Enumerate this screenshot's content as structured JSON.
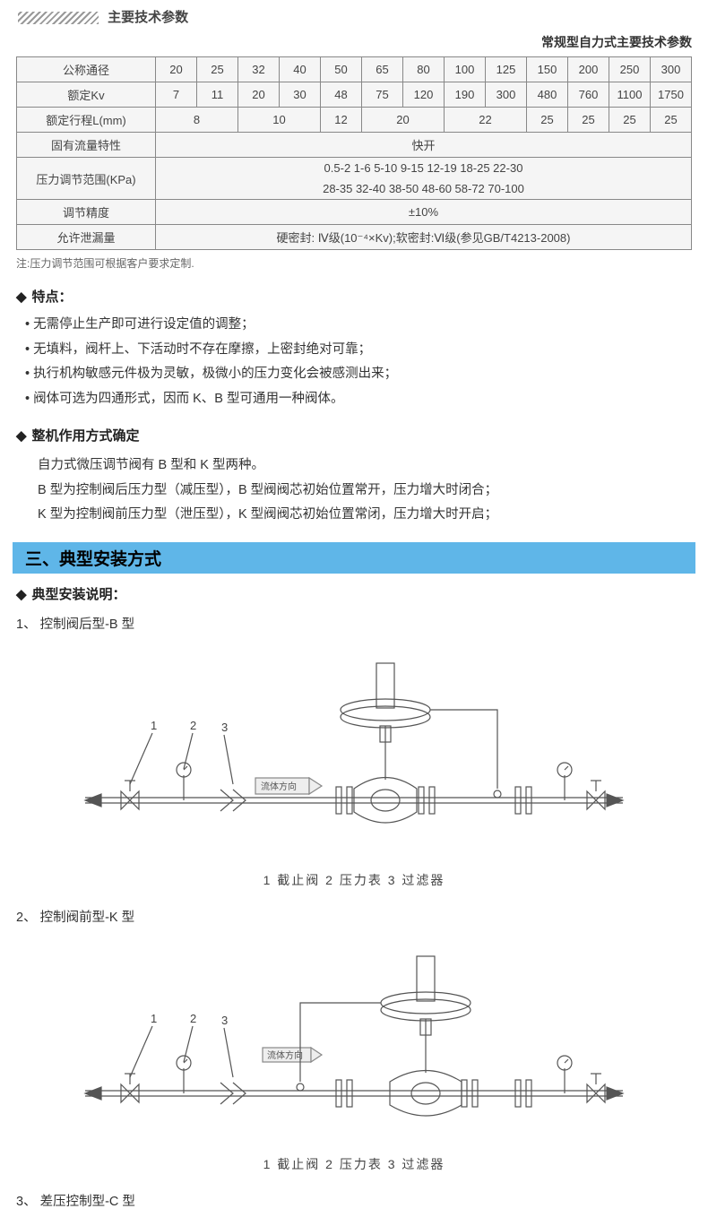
{
  "header": {
    "main_title": "主要技术参数",
    "subtitle": "常规型自力式主要技术参数"
  },
  "params_table": {
    "columns": [
      "20",
      "25",
      "32",
      "40",
      "50",
      "65",
      "80",
      "100",
      "125",
      "150",
      "200",
      "250",
      "300"
    ],
    "rows": {
      "nominal_diameter_label": "公称通径",
      "rated_kv_label": "额定Kv",
      "rated_kv_values": [
        "7",
        "11",
        "20",
        "30",
        "48",
        "75",
        "120",
        "190",
        "300",
        "480",
        "760",
        "1100",
        "1750"
      ],
      "rated_travel_label": "额定行程L(mm)",
      "rated_travel_spans": [
        {
          "text": "8",
          "span": 2
        },
        {
          "text": "10",
          "span": 2
        },
        {
          "text": "12",
          "span": 1
        },
        {
          "text": "20",
          "span": 2
        },
        {
          "text": "22",
          "span": 2
        },
        {
          "text": "25",
          "span": 1
        },
        {
          "text": "25",
          "span": 1
        },
        {
          "text": "25",
          "span": 1
        },
        {
          "text": "25",
          "span": 1
        }
      ],
      "flow_char_label": "固有流量特性",
      "flow_char_value": "快开",
      "pressure_range_label": "压力调节范围(KPa)",
      "pressure_range_line1": "0.5-2  1-6  5-10  9-15  12-19  18-25  22-30",
      "pressure_range_line2": "28-35  32-40  38-50  48-60  58-72  70-100",
      "accuracy_label": "调节精度",
      "accuracy_value": "±10%",
      "leakage_label": "允许泄漏量",
      "leakage_value": "硬密封: Ⅳ级(10⁻⁴×Kv);软密封:Ⅵ级(参见GB/T4213-2008)"
    },
    "note": "注:压力调节范围可根据客户要求定制."
  },
  "features": {
    "heading": "特点：",
    "items": [
      "无需停止生产即可进行设定值的调整；",
      "无填料，阀杆上、下活动时不存在摩擦，上密封绝对可靠；",
      "执行机构敏感元件极为灵敏，极微小的压力变化会被感测出来；",
      "阀体可选为四通形式，因而 K、B 型可通用一种阀体。"
    ]
  },
  "mode": {
    "heading": "整机作用方式确定",
    "lines": [
      "自力式微压调节阀有 B 型和 K 型两种。",
      "B 型为控制阀后压力型（减压型），B 型阀阀芯初始位置常开，压力增大时闭合；",
      "K 型为控制阀前压力型（泄压型），K 型阀阀芯初始位置常闭，压力增大时开启；"
    ]
  },
  "section3": {
    "bar": "三、典型安装方式",
    "install_heading": "典型安装说明：",
    "items": [
      "1、 控制阀后型-B 型",
      "2、 控制阀前型-K 型",
      "3、 差压控制型-C 型"
    ],
    "caption": "1 截止阀  2 压力表  3 过滤器",
    "diagram_labels": {
      "n1": "1",
      "n2": "2",
      "n3": "3",
      "flow_dir": "流体方向"
    }
  },
  "colors": {
    "section_bar_bg": "#5fb6e8",
    "table_border": "#888888",
    "table_bg": "#f5f5f5",
    "line": "#555555"
  }
}
